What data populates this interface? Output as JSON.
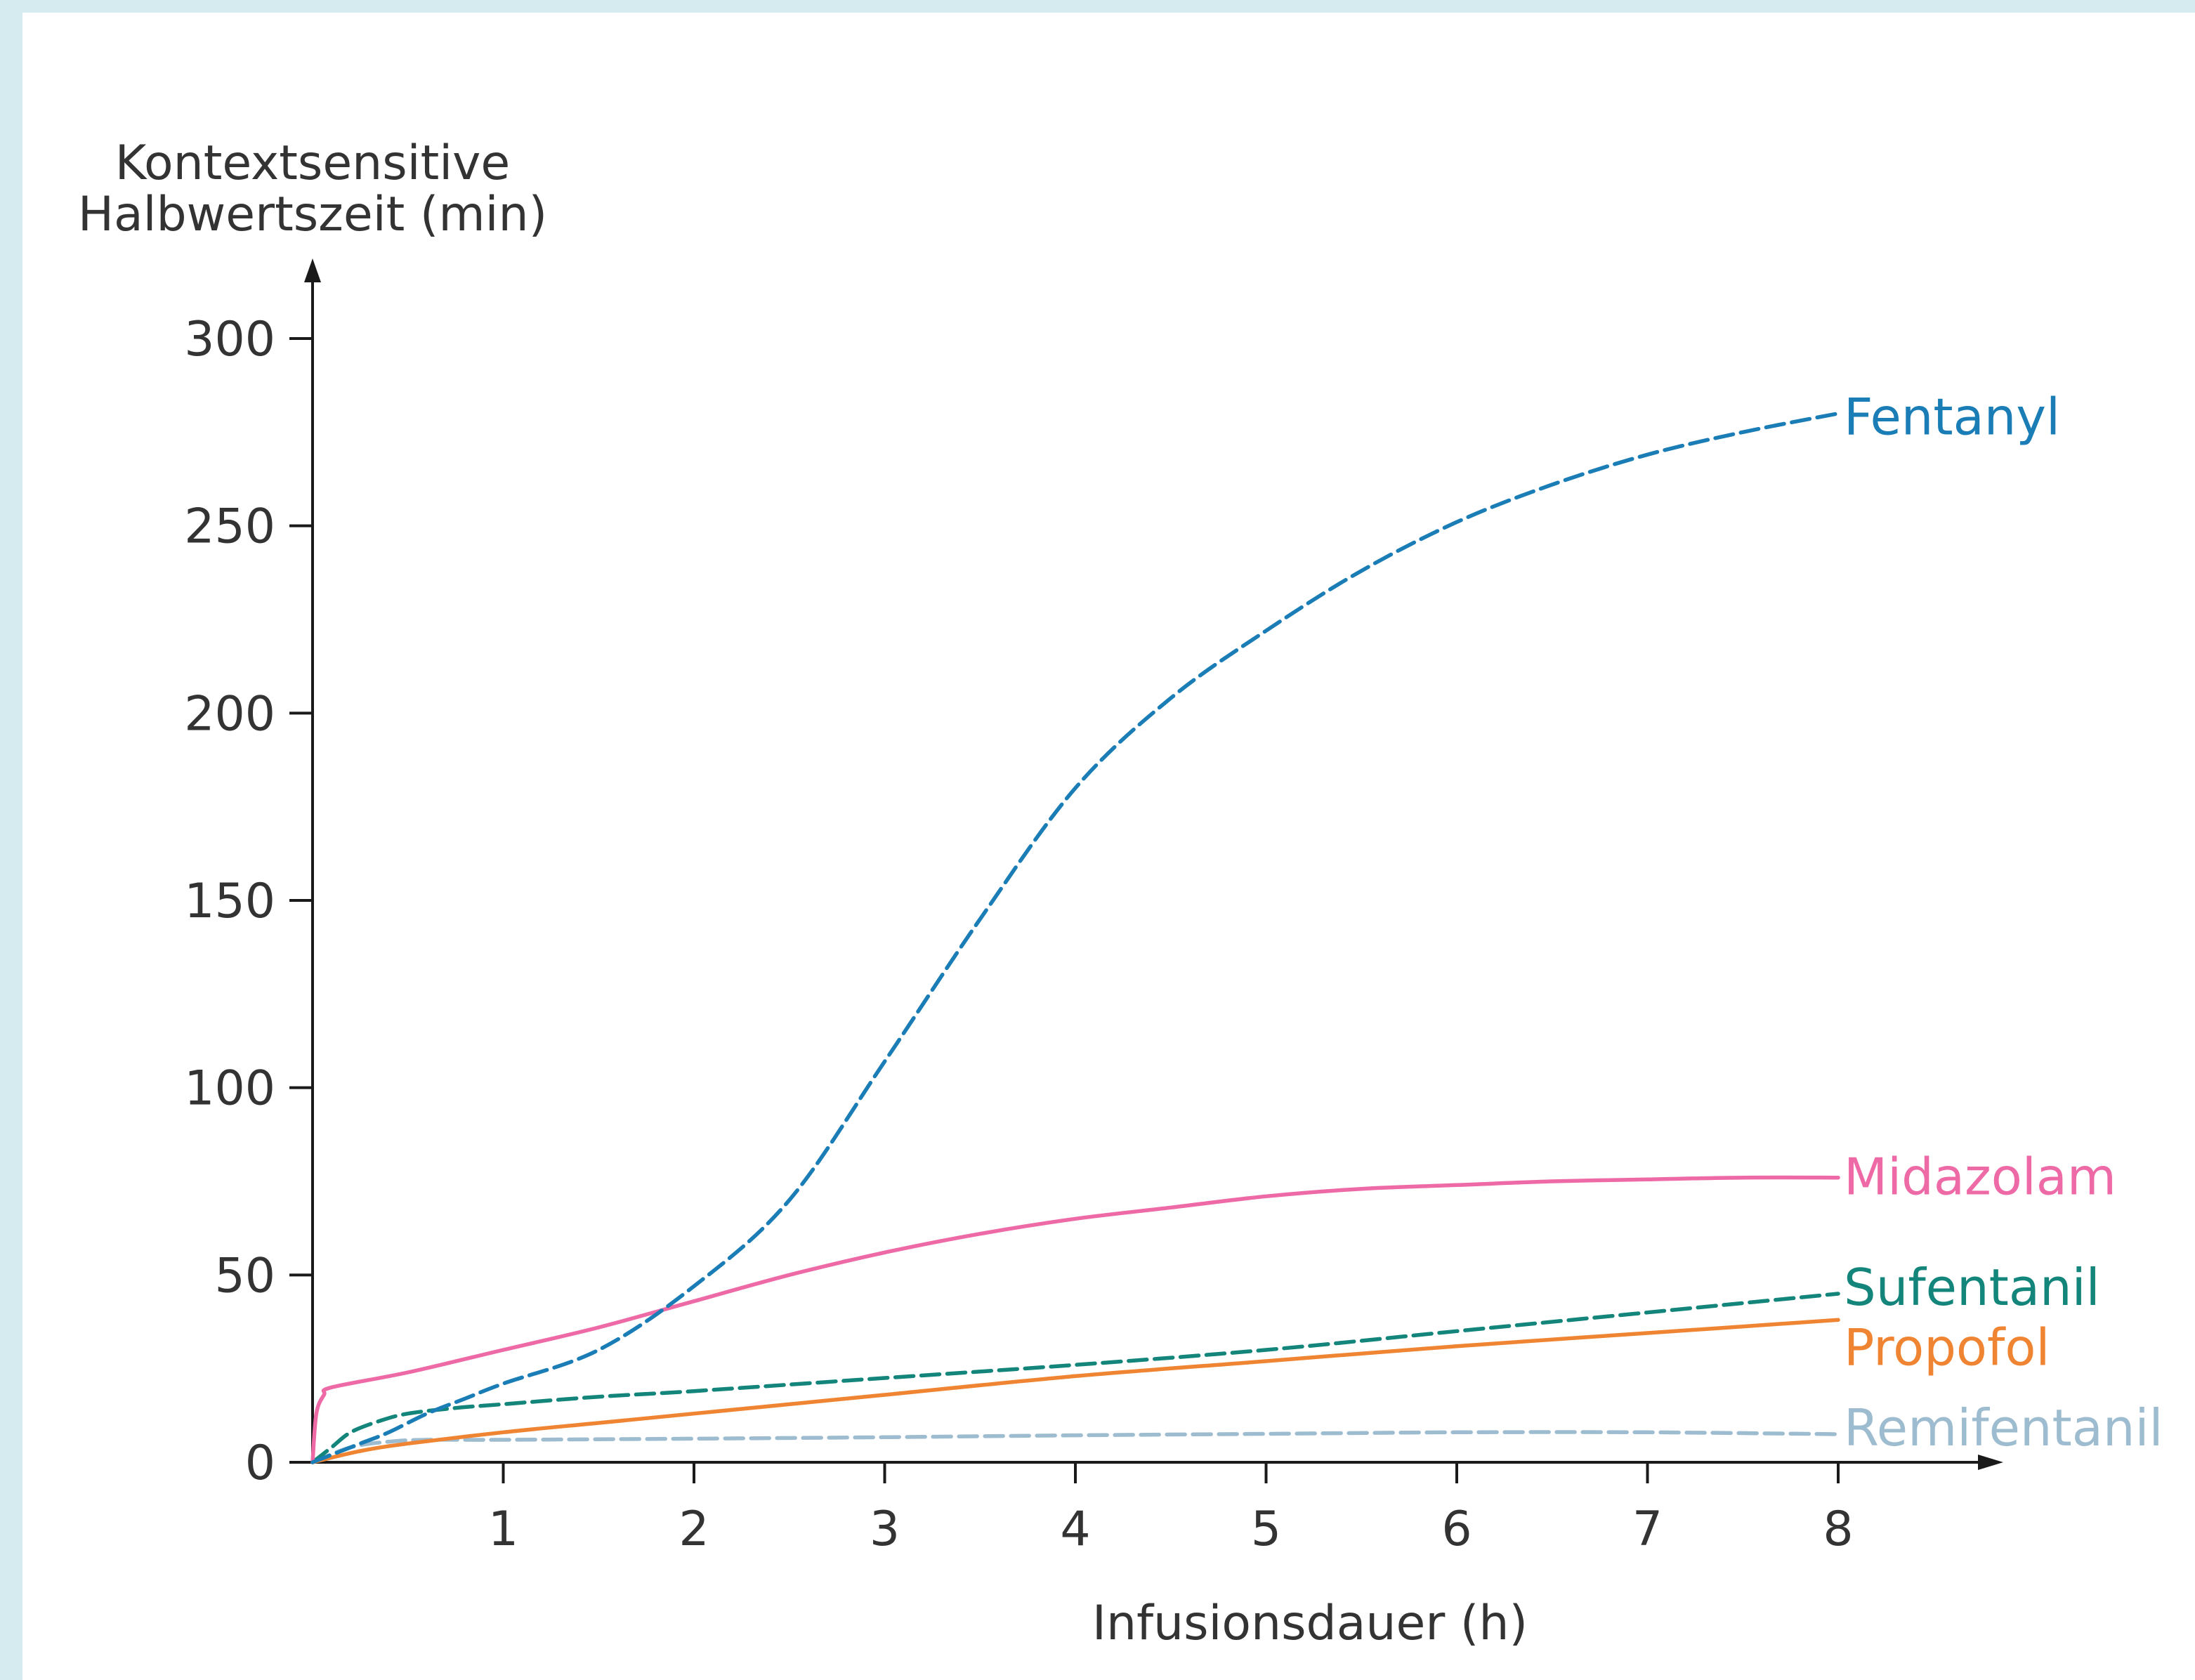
{
  "chart_data": {
    "type": "line",
    "ylabel_line1": "Kontextsensitive",
    "ylabel_line2": "Halbwertszeit (min)",
    "xlabel": "Infusionsdauer (h)",
    "xlim": [
      0,
      8
    ],
    "ylim": [
      0,
      300
    ],
    "x_ticks": [
      1,
      2,
      3,
      4,
      5,
      6,
      7,
      8
    ],
    "y_ticks": [
      0,
      50,
      100,
      150,
      200,
      250,
      300
    ],
    "grid": false,
    "legend": "series labels at right end of lines",
    "series": [
      {
        "name": "Fentanyl",
        "color": "#1b7db5",
        "style": "dashed",
        "x": [
          0,
          0.1,
          0.25,
          0.4,
          0.6,
          0.8,
          1.0,
          1.5,
          2.0,
          2.5,
          3.0,
          3.5,
          4.0,
          4.5,
          5.0,
          5.5,
          6.0,
          6.5,
          7.0,
          7.5,
          8.0
        ],
        "y": [
          0,
          2,
          5,
          8,
          13,
          17,
          21,
          30,
          47,
          70,
          107,
          145,
          180,
          204,
          222,
          238,
          251,
          261,
          269,
          275,
          280
        ]
      },
      {
        "name": "Midazolam",
        "color": "#ee6aa7",
        "style": "solid",
        "x": [
          0,
          0.02,
          0.06,
          0.1,
          0.5,
          1.0,
          1.5,
          2.0,
          2.5,
          3.0,
          3.5,
          4.0,
          4.5,
          5.0,
          5.5,
          6.0,
          6.5,
          7.0,
          7.5,
          8.0
        ],
        "y": [
          0,
          13,
          18,
          20,
          24,
          30,
          36,
          43,
          50,
          56,
          61,
          65,
          68,
          71,
          73,
          74,
          75,
          75.5,
          76,
          76
        ]
      },
      {
        "name": "Sufentanil",
        "color": "#13857a",
        "style": "dashed",
        "x": [
          0,
          0.1,
          0.2,
          0.35,
          0.5,
          0.75,
          1.0,
          1.5,
          2.0,
          3.0,
          4.0,
          5.0,
          6.0,
          7.0,
          8.0
        ],
        "y": [
          0,
          4,
          8,
          11,
          13,
          14.5,
          15.5,
          17.5,
          19,
          22.5,
          26,
          30,
          35,
          40,
          45
        ]
      },
      {
        "name": "Propofol",
        "color": "#ef8533",
        "style": "solid",
        "x": [
          0,
          0.25,
          0.5,
          1.0,
          1.5,
          2.0,
          3.0,
          4.0,
          5.0,
          6.0,
          7.0,
          8.0
        ],
        "y": [
          0,
          3,
          5,
          8,
          10.5,
          13,
          18,
          23,
          27,
          31,
          34.5,
          38
        ]
      },
      {
        "name": "Remifentanil",
        "color": "#9ebccf",
        "style": "dashed",
        "x": [
          0,
          0.2,
          0.4,
          0.6,
          1.0,
          2.0,
          3.0,
          4.0,
          5.0,
          6.0,
          7.0,
          8.0
        ],
        "y": [
          0,
          4,
          5.5,
          6,
          6,
          6.3,
          6.7,
          7.2,
          7.6,
          8,
          8,
          7.5
        ]
      }
    ]
  }
}
